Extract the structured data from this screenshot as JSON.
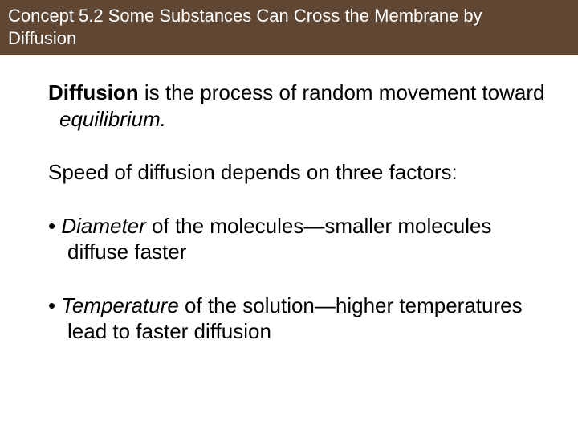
{
  "header": {
    "title_line1": "Concept 5.2 Some Substances Can Cross the Membrane by",
    "title_line2": "Diffusion"
  },
  "content": {
    "p1_bold": "Diffusion",
    "p1_mid": " is the process of random movement toward ",
    "p1_italic": "equilibrium.",
    "p2": "Speed of diffusion depends on three factors:",
    "b1_prefix": "• ",
    "b1_italic": "Diameter",
    "b1_rest": " of the molecules—smaller molecules diffuse faster",
    "b2_prefix": "• ",
    "b2_italic": "Temperature",
    "b2_rest": " of the solution—higher temperatures lead to faster diffusion"
  },
  "colors": {
    "header_bg": "#604733",
    "header_text": "#ffffff",
    "body_bg": "#ffffff",
    "body_text": "#000000"
  },
  "typography": {
    "header_fontsize": 22,
    "body_fontsize": 26,
    "font_family": "Arial"
  }
}
